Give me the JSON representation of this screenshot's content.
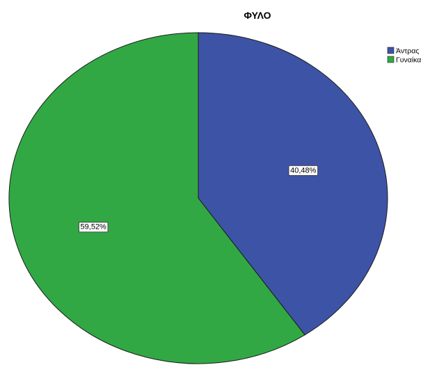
{
  "chart_data": {
    "type": "pie",
    "title": "ΦΥΛΟ",
    "categories": [
      "Άντρας",
      "Γυναίκα"
    ],
    "values": [
      40.48,
      59.52
    ],
    "data_labels": [
      "40,48%",
      "59,52%"
    ],
    "colors": [
      "#3d53a6",
      "#32a845"
    ],
    "legend_position": "top-right",
    "start": "top",
    "direction": "clockwise"
  }
}
